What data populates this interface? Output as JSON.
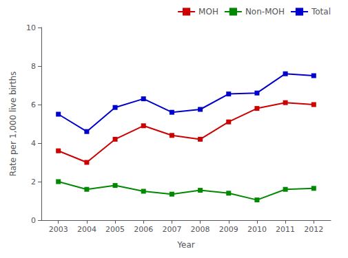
{
  "chart_data": {
    "type": "line",
    "x": [
      2003,
      2004,
      2005,
      2006,
      2007,
      2008,
      2009,
      2010,
      2011,
      2012
    ],
    "series": [
      {
        "name": "MOH",
        "color": "#cc0000",
        "values": [
          3.6,
          3.0,
          4.2,
          4.9,
          4.4,
          4.2,
          5.1,
          5.8,
          6.1,
          6.0
        ]
      },
      {
        "name": "Non-MOH",
        "color": "#008800",
        "values": [
          2.0,
          1.6,
          1.8,
          1.5,
          1.35,
          1.55,
          1.4,
          1.05,
          1.6,
          1.65
        ]
      },
      {
        "name": "Total",
        "color": "#0000cc",
        "values": [
          5.5,
          4.6,
          5.85,
          6.3,
          5.6,
          5.75,
          6.55,
          6.6,
          7.6,
          7.5
        ]
      }
    ],
    "xlabel": "Year",
    "ylabel": "Rate per 1,000 live births",
    "xlim": [
      2002.4,
      2012.6
    ],
    "xticks": [
      2003,
      2004,
      2005,
      2006,
      2007,
      2008,
      2009,
      2010,
      2011,
      2012
    ],
    "ylim": [
      0,
      10
    ],
    "yticks": [
      0,
      2,
      4,
      6,
      8,
      10
    ],
    "marker": "square",
    "grid": false,
    "legend": "upper right"
  }
}
